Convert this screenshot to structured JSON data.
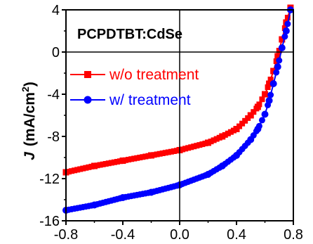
{
  "chart_data": {
    "type": "line",
    "title": "PCPDTBT:CdSe",
    "xlabel": "",
    "ylabel": "J (mA/cm2)",
    "ylabel_parts": {
      "symbol": "J",
      "unit": "(mA/cm",
      "superscript": "2",
      "close": ")"
    },
    "xlim": [
      -0.8,
      0.8
    ],
    "ylim": [
      -16,
      4
    ],
    "x_ticks": [
      -0.8,
      -0.4,
      0.0,
      0.4,
      0.8
    ],
    "x_tick_labels": [
      "-0.8",
      "-0.4",
      "0.0",
      "0.4",
      "0.8"
    ],
    "y_ticks": [
      4,
      0,
      -4,
      -8,
      -12,
      -16
    ],
    "y_tick_labels": [
      "4",
      "0",
      "-4",
      "-8",
      "-12",
      "-16"
    ],
    "legend_position": "upper-left",
    "series": [
      {
        "name": "w/o treatment",
        "color": "#ff0000",
        "marker": "square",
        "x": [
          -0.8,
          -0.6,
          -0.4,
          -0.2,
          0.0,
          0.2,
          0.3,
          0.4,
          0.5,
          0.55,
          0.6,
          0.63,
          0.66,
          0.69,
          0.72,
          0.75,
          0.78
        ],
        "y": [
          -11.4,
          -10.8,
          -10.3,
          -9.8,
          -9.3,
          -8.6,
          -8.0,
          -7.3,
          -6.0,
          -5.2,
          -4.0,
          -3.0,
          -1.8,
          -0.4,
          1.2,
          2.8,
          4.2
        ]
      },
      {
        "name": "w/ treatment",
        "color": "#0000ff",
        "marker": "circle",
        "x": [
          -0.8,
          -0.6,
          -0.4,
          -0.2,
          0.0,
          0.2,
          0.3,
          0.4,
          0.5,
          0.55,
          0.6,
          0.63,
          0.66,
          0.69,
          0.72,
          0.75,
          0.78
        ],
        "y": [
          -15.0,
          -14.5,
          -13.8,
          -13.3,
          -12.6,
          -11.6,
          -10.8,
          -9.8,
          -8.3,
          -7.3,
          -5.9,
          -4.6,
          -3.0,
          -1.4,
          0.4,
          2.0,
          4.0
        ]
      }
    ]
  }
}
